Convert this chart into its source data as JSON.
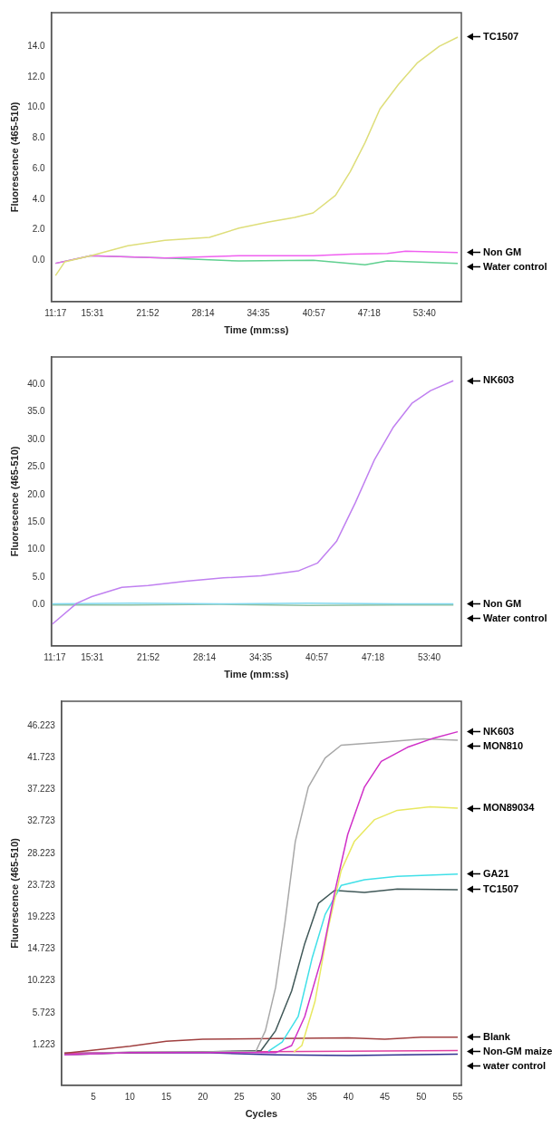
{
  "chart_data": [
    {
      "type": "line",
      "xlabel": "Time (mm:ss)",
      "ylabel": "Fluorescence (465-510)",
      "xlim": [
        10.8,
        57.9
      ],
      "ylim": [
        -2.7,
        16.2
      ],
      "xticks": [
        {
          "value": 11.28,
          "label": "11:17"
        },
        {
          "value": 15.52,
          "label": "15:31"
        },
        {
          "value": 21.87,
          "label": "21:52"
        },
        {
          "value": 28.23,
          "label": "28:14"
        },
        {
          "value": 34.58,
          "label": "34:35"
        },
        {
          "value": 40.95,
          "label": "40:57"
        },
        {
          "value": 47.3,
          "label": "47:18"
        },
        {
          "value": 53.67,
          "label": "53:40"
        }
      ],
      "yticks": [
        {
          "value": 0,
          "label": "0.0"
        },
        {
          "value": 2,
          "label": "2.0"
        },
        {
          "value": 4,
          "label": "4.0"
        },
        {
          "value": 6,
          "label": "6.0"
        },
        {
          "value": 8,
          "label": "8.0"
        },
        {
          "value": 10,
          "label": "10.0"
        },
        {
          "value": 12,
          "label": "12.0"
        },
        {
          "value": 14,
          "label": "14.0"
        }
      ],
      "grid": false,
      "legend": false,
      "marker": "none",
      "line_style": "solid",
      "series": [
        {
          "name": "TC1507",
          "color": "#dede7a",
          "x": [
            11.28,
            12.35,
            15.33,
            19.58,
            23.84,
            28.95,
            32.36,
            35.77,
            38.75,
            40.88,
            43.44,
            45.14,
            46.84,
            48.55,
            50.67,
            52.81,
            55.36,
            57.49
          ],
          "values": [
            -1.0,
            -0.1,
            0.3,
            0.95,
            1.3,
            1.5,
            2.1,
            2.5,
            2.8,
            3.1,
            4.25,
            5.8,
            7.7,
            9.9,
            11.5,
            12.9,
            14.0,
            14.6
          ]
        },
        {
          "name": "Non GM",
          "color": "#f060f0",
          "x": [
            11.28,
            15.33,
            23.84,
            32.36,
            40.88,
            45.14,
            49.4,
            51.5,
            57.49
          ],
          "values": [
            -0.2,
            0.3,
            0.15,
            0.3,
            0.3,
            0.4,
            0.45,
            0.6,
            0.5
          ]
        },
        {
          "name": "Water control",
          "color": "#60d090",
          "x": [
            11.28,
            15.33,
            23.84,
            32.36,
            40.88,
            46.84,
            49.4,
            57.49
          ],
          "values": [
            -0.2,
            0.3,
            0.15,
            -0.05,
            0,
            -0.3,
            -0.05,
            -0.2
          ]
        }
      ]
    },
    {
      "type": "line",
      "xlabel": "Time (mm:ss)",
      "ylabel": "Fluorescence (465-510)",
      "xlim": [
        10.9,
        57.3
      ],
      "ylim": [
        -7.4,
        44.9
      ],
      "xticks": [
        {
          "value": 11.28,
          "label": "11:17"
        },
        {
          "value": 15.52,
          "label": "15:31"
        },
        {
          "value": 21.87,
          "label": "21:52"
        },
        {
          "value": 28.23,
          "label": "28:14"
        },
        {
          "value": 34.58,
          "label": "34:35"
        },
        {
          "value": 40.95,
          "label": "40:57"
        },
        {
          "value": 47.3,
          "label": "47:18"
        },
        {
          "value": 53.67,
          "label": "53:40"
        }
      ],
      "yticks": [
        {
          "value": 0,
          "label": "0.0"
        },
        {
          "value": 5,
          "label": "5.0"
        },
        {
          "value": 10,
          "label": "10.0"
        },
        {
          "value": 15,
          "label": "15.0"
        },
        {
          "value": 20,
          "label": "20.0"
        },
        {
          "value": 25,
          "label": "25.0"
        },
        {
          "value": 30,
          "label": "30.0"
        },
        {
          "value": 35,
          "label": "35.0"
        },
        {
          "value": 40,
          "label": "40.0"
        }
      ],
      "grid": false,
      "legend": false,
      "marker": "none",
      "line_style": "solid",
      "series": [
        {
          "name": "NK603",
          "color": "#c080f0",
          "x": [
            10.99,
            13.77,
            15.47,
            18.88,
            21.86,
            26.12,
            30.38,
            34.65,
            38.91,
            41.04,
            43.17,
            45.3,
            47.44,
            49.56,
            51.7,
            53.82,
            56.39
          ],
          "values": [
            -3.5,
            0.3,
            1.5,
            3.2,
            3.5,
            4.3,
            4.9,
            5.3,
            6.2,
            7.6,
            11.5,
            18.5,
            26.2,
            32.1,
            36.5,
            38.8,
            40.6
          ]
        },
        {
          "name": "Non GM",
          "color": "#80d8f0",
          "x": [
            11.0,
            20,
            30,
            40,
            50,
            56.4
          ],
          "values": [
            0.2,
            0.3,
            0.2,
            0.3,
            0.2,
            0.2
          ]
        },
        {
          "name": "Water control",
          "color": "#90c0a0",
          "x": [
            11.0,
            20,
            30,
            40,
            50,
            56.4
          ],
          "values": [
            0.0,
            0.0,
            0.1,
            -0.1,
            0.0,
            0.0
          ]
        }
      ]
    },
    {
      "type": "line",
      "xlabel": "Cycles",
      "ylabel": "Fluorescence (465-510)",
      "xlim": [
        0.6,
        55.5
      ],
      "ylim": [
        -4.5,
        49.7
      ],
      "xticks": [
        5,
        10,
        15,
        20,
        25,
        30,
        35,
        40,
        45,
        50,
        55
      ],
      "yticks": [
        1.223,
        5.723,
        10.223,
        14.723,
        19.223,
        23.723,
        28.223,
        32.723,
        37.223,
        41.723,
        46.223
      ],
      "grid": false,
      "legend": false,
      "marker": "none",
      "line_style": "solid",
      "series": [
        {
          "name": "NK603",
          "color": "#d030c8",
          "x": [
            1,
            10,
            20,
            30,
            32.2,
            34,
            36.3,
            38.1,
            39.9,
            42.2,
            44.5,
            48.1,
            51.7,
            55
          ],
          "values": [
            -0.2,
            0.1,
            0.1,
            0.1,
            1.1,
            5.2,
            13.4,
            22.7,
            30.9,
            37.6,
            41.2,
            43.2,
            44.5,
            45.4
          ]
        },
        {
          "name": "MON810",
          "color": "#a8a8a8",
          "x": [
            1,
            10,
            20,
            27.3,
            28.6,
            30,
            31.3,
            32.7,
            34.5,
            36.8,
            39,
            44.5,
            50.3,
            55
          ],
          "values": [
            -0.2,
            0.2,
            0.2,
            0.3,
            3.2,
            9.3,
            18.6,
            29.9,
            37.6,
            41.7,
            43.5,
            43.9,
            44.4,
            44.2
          ]
        },
        {
          "name": "MON89034",
          "color": "#e8e860",
          "x": [
            32.5,
            33.6,
            35.4,
            37.2,
            39,
            40.8,
            43.6,
            46.7,
            51.2,
            55
          ],
          "values": [
            0.2,
            1.1,
            7.3,
            17.6,
            25.8,
            29.9,
            33.0,
            34.3,
            34.8,
            34.6
          ]
        },
        {
          "name": "GA21",
          "color": "#40e0e8",
          "x": [
            29,
            30.9,
            33.1,
            35,
            36.8,
            39,
            42.2,
            46.7,
            55
          ],
          "values": [
            0.3,
            1.6,
            5.2,
            13.4,
            19.6,
            23.7,
            24.5,
            25.0,
            25.3
          ]
        },
        {
          "name": "TC1507",
          "color": "#405858",
          "x": [
            1,
            10,
            20,
            28,
            30,
            32.2,
            34,
            35.9,
            38.1,
            42.2,
            46.7,
            55
          ],
          "values": [
            -0.2,
            0.1,
            0.2,
            0.4,
            3.2,
            8.8,
            15.5,
            21.2,
            23.0,
            22.7,
            23.2,
            23.1
          ]
        },
        {
          "name": "Blank",
          "color": "#a04040",
          "x": [
            1,
            10,
            15,
            20,
            30,
            40,
            45,
            50,
            55
          ],
          "values": [
            0.0,
            1.0,
            1.7,
            2.0,
            2.1,
            2.2,
            2.0,
            2.3,
            2.3
          ]
        },
        {
          "name": "Non-GM maize",
          "color": "#e040a0",
          "x": [
            1,
            20,
            40,
            55
          ],
          "values": [
            0.0,
            0.2,
            0.3,
            0.4
          ]
        },
        {
          "name": "water control",
          "color": "#303090",
          "x": [
            1,
            20,
            30,
            40,
            55
          ],
          "values": [
            0.0,
            0.1,
            -0.2,
            -0.3,
            -0.1
          ]
        }
      ]
    }
  ]
}
